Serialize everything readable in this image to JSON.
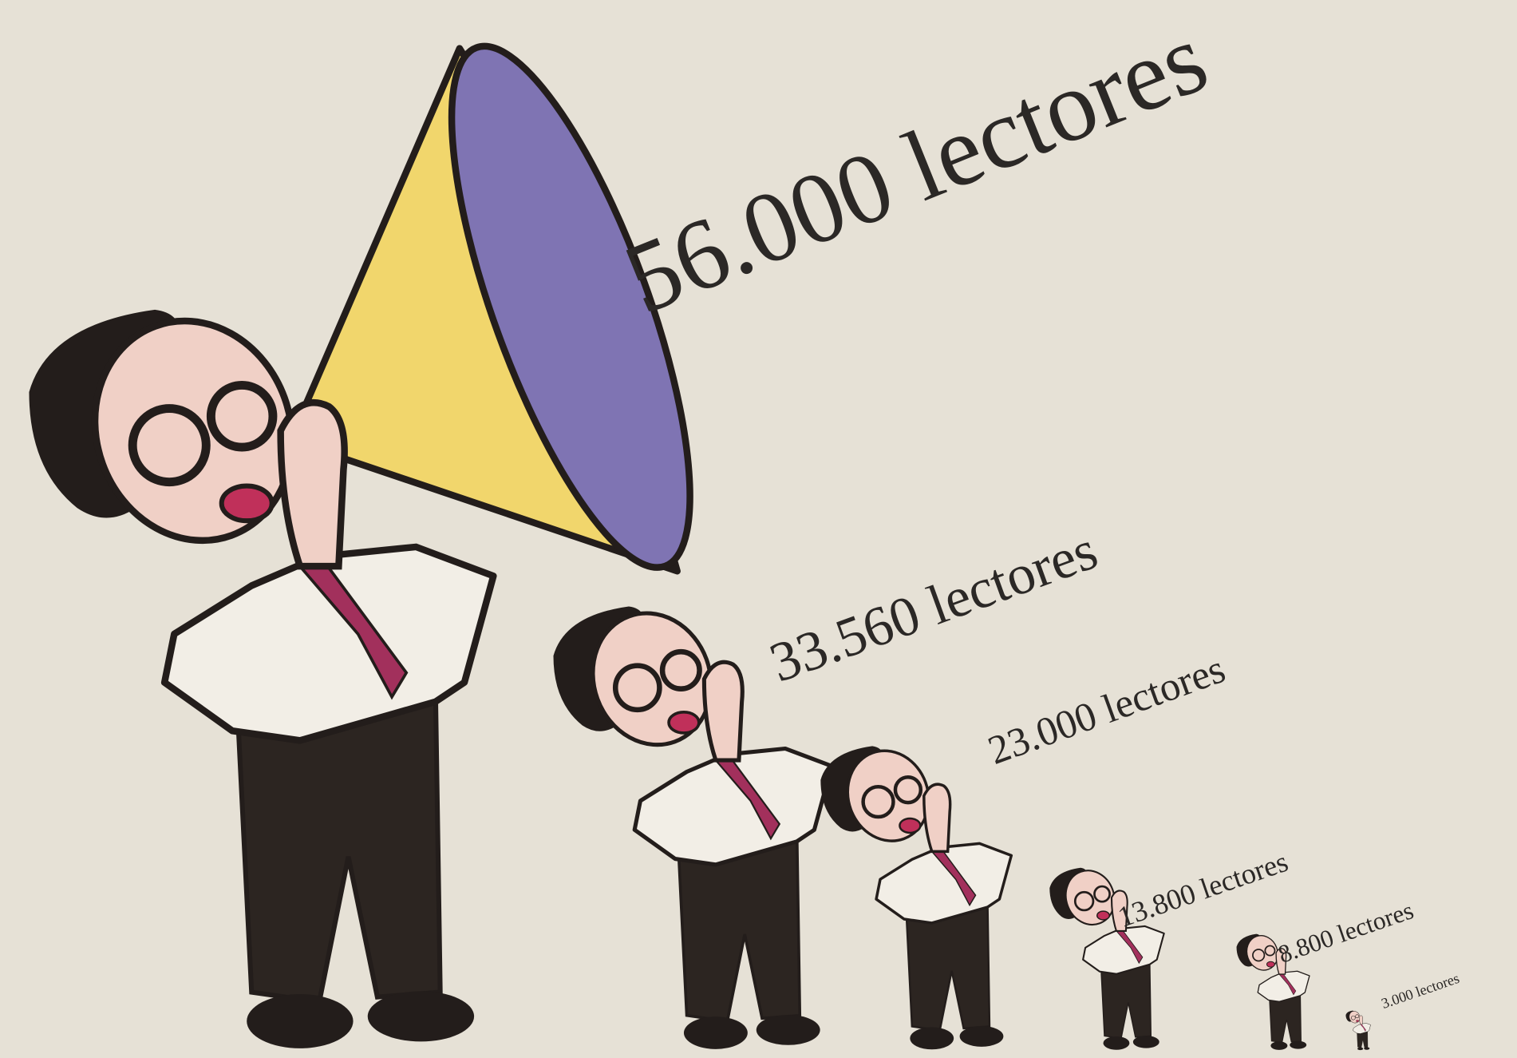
{
  "chart_data": {
    "type": "pictogram",
    "values": [
      56000,
      33560,
      23000,
      13800,
      8800,
      3000
    ],
    "value_labels": [
      "56.000 lectores",
      "33.560 lectores",
      "23.000 lectores",
      "13.800 lectores",
      "8.800 lectores",
      "3.000 lectores"
    ]
  }
}
